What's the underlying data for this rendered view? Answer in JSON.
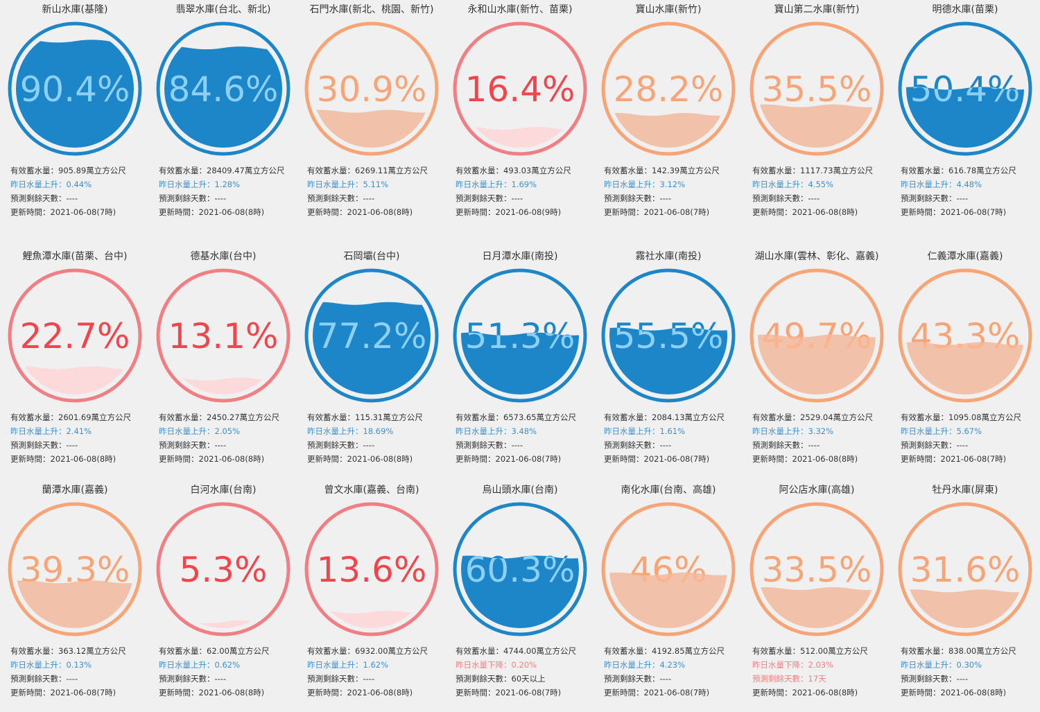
{
  "labels": {
    "storage_prefix": "有效蓄水量：",
    "storage_unit": "萬立方公尺",
    "rise_prefix": "昨日水量上升：",
    "fall_prefix": "昨日水量下降：",
    "days_prefix": "預測剩餘天數：",
    "update_prefix": "更新時間："
  },
  "reservoirs": [
    {
      "name": "新山水庫(基隆)",
      "percent": 90.4,
      "percent_text": "90.4%",
      "level": "high",
      "storage": "905.89",
      "change_dir": "rise",
      "change": "0.44%",
      "days": "----",
      "updated": "2021-06-08(7時)"
    },
    {
      "name": "翡翠水庫(台北、新北)",
      "percent": 84.6,
      "percent_text": "84.6%",
      "level": "high",
      "storage": "28409.47",
      "change_dir": "rise",
      "change": "1.28%",
      "days": "----",
      "updated": "2021-06-08(8時)"
    },
    {
      "name": "石門水庫(新北、桃園、新竹)",
      "percent": 30.9,
      "percent_text": "30.9%",
      "level": "mid",
      "storage": "6269.11",
      "change_dir": "rise",
      "change": "5.11%",
      "days": "----",
      "updated": "2021-06-08(8時)"
    },
    {
      "name": "永和山水庫(新竹、苗栗)",
      "percent": 16.4,
      "percent_text": "16.4%",
      "level": "low",
      "storage": "493.03",
      "change_dir": "rise",
      "change": "1.69%",
      "days": "----",
      "updated": "2021-06-08(9時)"
    },
    {
      "name": "寶山水庫(新竹)",
      "percent": 28.2,
      "percent_text": "28.2%",
      "level": "mid",
      "storage": "142.39",
      "change_dir": "rise",
      "change": "3.12%",
      "days": "----",
      "updated": "2021-06-08(7時)"
    },
    {
      "name": "寶山第二水庫(新竹)",
      "percent": 35.5,
      "percent_text": "35.5%",
      "level": "mid",
      "storage": "1117.73",
      "change_dir": "rise",
      "change": "4.55%",
      "days": "----",
      "updated": "2021-06-08(8時)"
    },
    {
      "name": "明德水庫(苗栗)",
      "percent": 50.4,
      "percent_text": "50.4%",
      "level": "high",
      "storage": "616.78",
      "change_dir": "rise",
      "change": "4.48%",
      "days": "----",
      "updated": "2021-06-08(7時)"
    },
    {
      "name": "鯉魚潭水庫(苗栗、台中)",
      "percent": 22.7,
      "percent_text": "22.7%",
      "level": "low",
      "storage": "2601.69",
      "change_dir": "rise",
      "change": "2.41%",
      "days": "----",
      "updated": "2021-06-08(8時)"
    },
    {
      "name": "德基水庫(台中)",
      "percent": 13.1,
      "percent_text": "13.1%",
      "level": "low",
      "storage": "2450.27",
      "change_dir": "rise",
      "change": "2.05%",
      "days": "----",
      "updated": "2021-06-08(8時)"
    },
    {
      "name": "石岡壩(台中)",
      "percent": 77.2,
      "percent_text": "77.2%",
      "level": "high",
      "storage": "115.31",
      "change_dir": "rise",
      "change": "18.69%",
      "days": "----",
      "updated": "2021-06-08(8時)"
    },
    {
      "name": "日月潭水庫(南投)",
      "percent": 51.3,
      "percent_text": "51.3%",
      "level": "high",
      "storage": "6573.65",
      "change_dir": "rise",
      "change": "3.48%",
      "days": "----",
      "updated": "2021-06-08(7時)"
    },
    {
      "name": "霧社水庫(南投)",
      "percent": 55.5,
      "percent_text": "55.5%",
      "level": "high",
      "storage": "2084.13",
      "change_dir": "rise",
      "change": "1.61%",
      "days": "----",
      "updated": "2021-06-08(7時)"
    },
    {
      "name": "湖山水庫(雲林、彰化、嘉義)",
      "percent": 49.7,
      "percent_text": "49.7%",
      "level": "mid",
      "storage": "2529.04",
      "change_dir": "rise",
      "change": "3.32%",
      "days": "----",
      "updated": "2021-06-08(8時)"
    },
    {
      "name": "仁義潭水庫(嘉義)",
      "percent": 43.3,
      "percent_text": "43.3%",
      "level": "mid",
      "storage": "1095.08",
      "change_dir": "rise",
      "change": "5.67%",
      "days": "----",
      "updated": "2021-06-08(7時)"
    },
    {
      "name": "蘭潭水庫(嘉義)",
      "percent": 39.3,
      "percent_text": "39.3%",
      "level": "mid",
      "storage": "363.12",
      "change_dir": "rise",
      "change": "0.13%",
      "days": "----",
      "updated": "2021-06-08(7時)"
    },
    {
      "name": "白河水庫(台南)",
      "percent": 5.3,
      "percent_text": "5.3%",
      "level": "low",
      "storage": "62.00",
      "change_dir": "rise",
      "change": "0.62%",
      "days": "----",
      "updated": "2021-06-08(8時)"
    },
    {
      "name": "曾文水庫(嘉義、台南)",
      "percent": 13.6,
      "percent_text": "13.6%",
      "level": "low",
      "storage": "6932.00",
      "change_dir": "rise",
      "change": "1.62%",
      "days": "----",
      "updated": "2021-06-08(8時)"
    },
    {
      "name": "烏山頭水庫(台南)",
      "percent": 60.3,
      "percent_text": "60.3%",
      "level": "high",
      "storage": "4744.00",
      "change_dir": "fall",
      "change": "0.20%",
      "days": "60天以上",
      "updated": "2021-06-08(7時)"
    },
    {
      "name": "南化水庫(台南、高雄)",
      "percent": 46,
      "percent_text": "46%",
      "level": "mid",
      "storage": "4192.85",
      "change_dir": "rise",
      "change": "4.23%",
      "days": "----",
      "updated": "2021-06-08(7時)"
    },
    {
      "name": "阿公店水庫(高雄)",
      "percent": 33.5,
      "percent_text": "33.5%",
      "level": "mid",
      "storage": "512.00",
      "change_dir": "fall",
      "change": "2.03%",
      "days": "17天",
      "days_warn": true,
      "updated": "2021-06-08(8時)"
    },
    {
      "name": "牡丹水庫(屏東)",
      "percent": 31.6,
      "percent_text": "31.6%",
      "level": "mid",
      "storage": "838.00",
      "change_dir": "rise",
      "change": "0.30%",
      "days": "----",
      "updated": "2021-06-08(8時)"
    }
  ],
  "colors": {
    "high": {
      "ring": "#1c86c8",
      "water": "#1c86c8",
      "text_dry": "#1c86c8",
      "text_wet": "#8cd0f5"
    },
    "mid": {
      "ring": "#f7a477",
      "water": "#f2c1a9",
      "text_dry": "#f7a477",
      "text_wet": "#fbb48e"
    },
    "low": {
      "ring": "#f17e82",
      "water": "#fcdadb",
      "text_dry": "#f0454b",
      "text_wet": "#f0454b"
    }
  }
}
